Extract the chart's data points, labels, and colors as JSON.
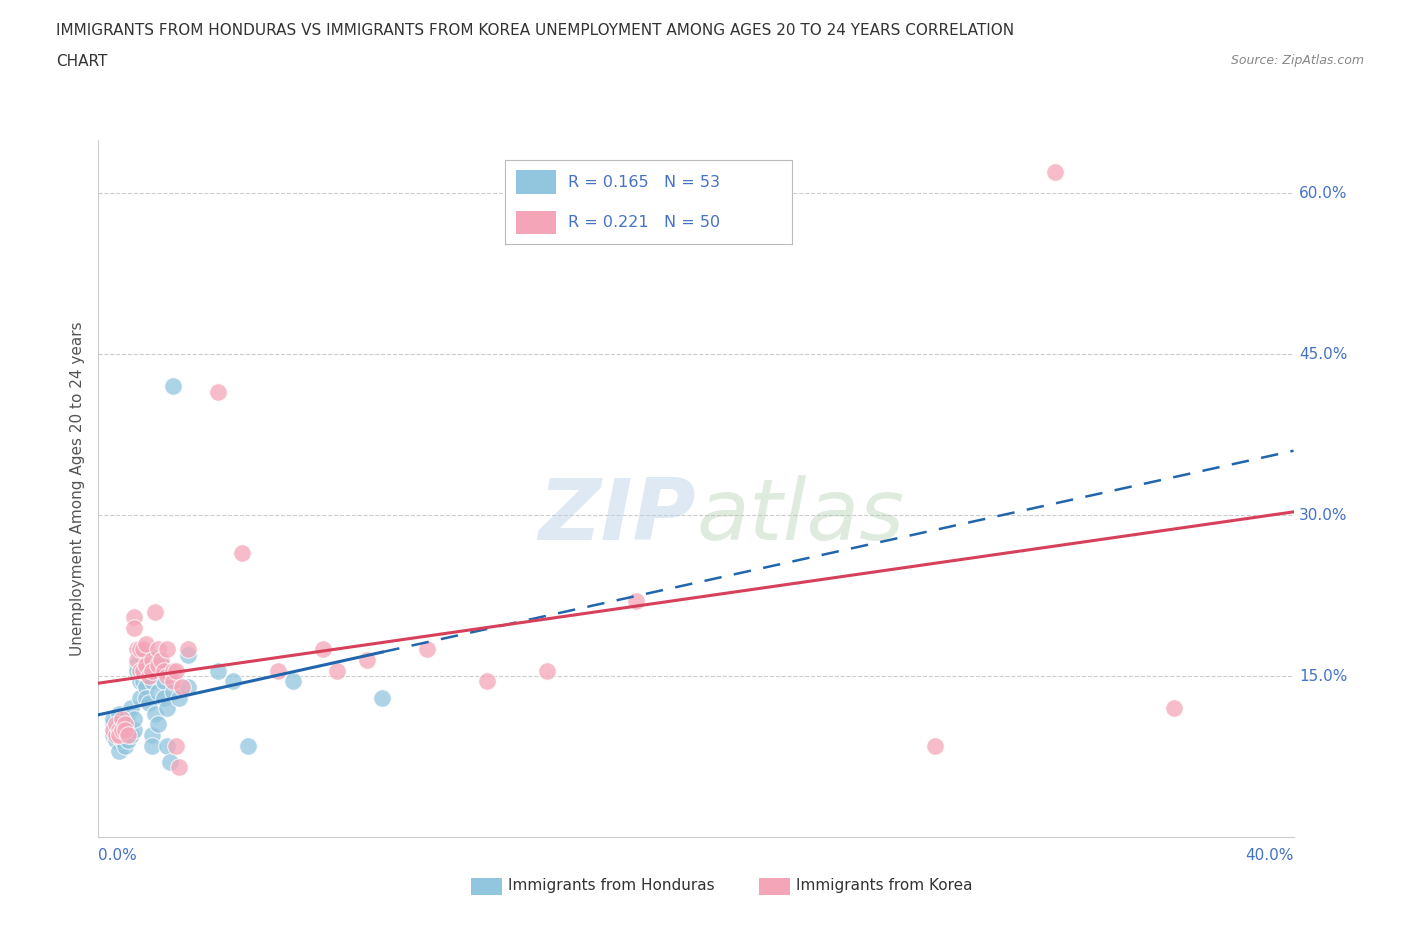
{
  "title_line1": "IMMIGRANTS FROM HONDURAS VS IMMIGRANTS FROM KOREA UNEMPLOYMENT AMONG AGES 20 TO 24 YEARS CORRELATION",
  "title_line2": "CHART",
  "source_text": "Source: ZipAtlas.com",
  "ylabel": "Unemployment Among Ages 20 to 24 years",
  "xlim": [
    0.0,
    0.4
  ],
  "ylim": [
    0.0,
    0.65
  ],
  "watermark": "ZIPatlas",
  "honduras_color": "#92c5de",
  "korea_color": "#f4a6b8",
  "honduras_line_color": "#2166ac",
  "korea_line_color": "#d6405a",
  "honduras_R": 0.165,
  "honduras_N": 53,
  "korea_R": 0.221,
  "korea_N": 50,
  "honduras_scatter": [
    [
      0.005,
      0.105
    ],
    [
      0.005,
      0.095
    ],
    [
      0.005,
      0.11
    ],
    [
      0.006,
      0.09
    ],
    [
      0.006,
      0.1
    ],
    [
      0.007,
      0.115
    ],
    [
      0.007,
      0.08
    ],
    [
      0.007,
      0.105
    ],
    [
      0.008,
      0.1
    ],
    [
      0.008,
      0.095
    ],
    [
      0.008,
      0.09
    ],
    [
      0.009,
      0.105
    ],
    [
      0.009,
      0.085
    ],
    [
      0.01,
      0.115
    ],
    [
      0.01,
      0.1
    ],
    [
      0.01,
      0.09
    ],
    [
      0.011,
      0.12
    ],
    [
      0.011,
      0.095
    ],
    [
      0.012,
      0.1
    ],
    [
      0.012,
      0.11
    ],
    [
      0.013,
      0.16
    ],
    [
      0.013,
      0.155
    ],
    [
      0.014,
      0.145
    ],
    [
      0.014,
      0.13
    ],
    [
      0.015,
      0.155
    ],
    [
      0.015,
      0.145
    ],
    [
      0.016,
      0.14
    ],
    [
      0.016,
      0.13
    ],
    [
      0.017,
      0.17
    ],
    [
      0.017,
      0.125
    ],
    [
      0.018,
      0.145
    ],
    [
      0.018,
      0.095
    ],
    [
      0.018,
      0.085
    ],
    [
      0.019,
      0.115
    ],
    [
      0.02,
      0.155
    ],
    [
      0.02,
      0.135
    ],
    [
      0.02,
      0.105
    ],
    [
      0.021,
      0.16
    ],
    [
      0.022,
      0.145
    ],
    [
      0.022,
      0.13
    ],
    [
      0.023,
      0.12
    ],
    [
      0.023,
      0.085
    ],
    [
      0.024,
      0.07
    ],
    [
      0.025,
      0.42
    ],
    [
      0.025,
      0.135
    ],
    [
      0.027,
      0.13
    ],
    [
      0.03,
      0.17
    ],
    [
      0.03,
      0.14
    ],
    [
      0.04,
      0.155
    ],
    [
      0.045,
      0.145
    ],
    [
      0.05,
      0.085
    ],
    [
      0.065,
      0.145
    ],
    [
      0.095,
      0.13
    ]
  ],
  "korea_scatter": [
    [
      0.005,
      0.1
    ],
    [
      0.006,
      0.095
    ],
    [
      0.006,
      0.105
    ],
    [
      0.007,
      0.1
    ],
    [
      0.007,
      0.095
    ],
    [
      0.008,
      0.11
    ],
    [
      0.008,
      0.1
    ],
    [
      0.009,
      0.105
    ],
    [
      0.009,
      0.1
    ],
    [
      0.01,
      0.095
    ],
    [
      0.012,
      0.205
    ],
    [
      0.012,
      0.195
    ],
    [
      0.013,
      0.175
    ],
    [
      0.013,
      0.165
    ],
    [
      0.014,
      0.175
    ],
    [
      0.014,
      0.155
    ],
    [
      0.015,
      0.175
    ],
    [
      0.015,
      0.155
    ],
    [
      0.016,
      0.18
    ],
    [
      0.016,
      0.16
    ],
    [
      0.017,
      0.15
    ],
    [
      0.018,
      0.165
    ],
    [
      0.018,
      0.155
    ],
    [
      0.019,
      0.21
    ],
    [
      0.02,
      0.175
    ],
    [
      0.02,
      0.16
    ],
    [
      0.021,
      0.165
    ],
    [
      0.022,
      0.155
    ],
    [
      0.023,
      0.175
    ],
    [
      0.023,
      0.15
    ],
    [
      0.025,
      0.155
    ],
    [
      0.025,
      0.145
    ],
    [
      0.026,
      0.155
    ],
    [
      0.026,
      0.085
    ],
    [
      0.027,
      0.065
    ],
    [
      0.028,
      0.14
    ],
    [
      0.03,
      0.175
    ],
    [
      0.04,
      0.415
    ],
    [
      0.048,
      0.265
    ],
    [
      0.06,
      0.155
    ],
    [
      0.075,
      0.175
    ],
    [
      0.08,
      0.155
    ],
    [
      0.09,
      0.165
    ],
    [
      0.11,
      0.175
    ],
    [
      0.13,
      0.145
    ],
    [
      0.15,
      0.155
    ],
    [
      0.18,
      0.22
    ],
    [
      0.28,
      0.085
    ],
    [
      0.32,
      0.62
    ],
    [
      0.36,
      0.12
    ]
  ],
  "grid_color": "#cccccc",
  "background_color": "#ffffff",
  "text_color": "#333333",
  "blue_text_color": "#4472c4"
}
